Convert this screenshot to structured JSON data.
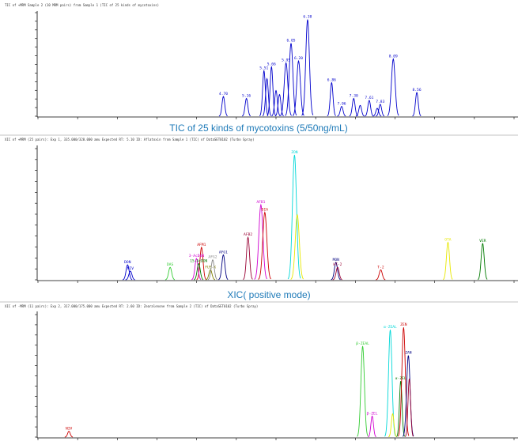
{
  "panel1_header": "TIC of +MRM Sample 2 (10 MRM pairs) from Sample 1 (TIC of 25 kinds of mycotoxins)",
  "panel2_header": "XIC of +MRM (25 pairs): Exp 1, 335.000/320.000 amu Expected RT: 5.10 ID: Aflatoxin from Sample 1 (TIC) of DataSET0102 (Turbo Spray)",
  "panel3_header": "XIC of -MRM (11 pairs): Exp 2, 317.000/175.000 amu Expected RT: 2.60 ID: Zearalenone from Sample 2 (TIC) of DataSET0102 (Turbo Spray)",
  "caption1": "TIC of 25 kinds of mycotoxins (5/50ng/mL)",
  "caption2": "XIC( positive mode)",
  "colors": {
    "blue": "#0000cc",
    "green": "#007a00",
    "magenta": "#d000d0",
    "red": "#cc0000",
    "yellow": "#e8e800",
    "cyan": "#00d8d8",
    "lime": "#33cc33",
    "navy": "#000080",
    "darkred": "#990033",
    "olive": "#808000"
  },
  "chart_data": [
    {
      "type": "line",
      "xlim": [
        1.0,
        10.5
      ],
      "ylim": [
        0,
        1.05
      ],
      "series": [
        {
          "color": "#0000cc",
          "peaks": [
            {
              "rt": 4.7,
              "h": 0.2,
              "label": "4.70"
            },
            {
              "rt": 5.16,
              "h": 0.18,
              "label": "5.16"
            },
            {
              "rt": 5.51,
              "h": 0.46,
              "label": "5.51"
            },
            {
              "rt": 5.57,
              "h": 0.38,
              "label": ""
            },
            {
              "rt": 5.66,
              "h": 0.5,
              "label": "5.66"
            },
            {
              "rt": 5.75,
              "h": 0.26,
              "label": ""
            },
            {
              "rt": 5.82,
              "h": 0.22,
              "label": ""
            },
            {
              "rt": 5.95,
              "h": 0.54,
              "label": "5.95"
            },
            {
              "rt": 6.05,
              "h": 0.74,
              "label": "6.05"
            },
            {
              "rt": 6.2,
              "h": 0.56,
              "label": "6.20"
            },
            {
              "rt": 6.38,
              "h": 0.98,
              "label": "6.38"
            },
            {
              "rt": 6.86,
              "h": 0.34,
              "label": "6.86"
            },
            {
              "rt": 7.06,
              "h": 0.1,
              "label": "7.06"
            },
            {
              "rt": 7.3,
              "h": 0.18,
              "label": "7.30"
            },
            {
              "rt": 7.43,
              "h": 0.11,
              "label": ""
            },
            {
              "rt": 7.61,
              "h": 0.16,
              "label": "7.61"
            },
            {
              "rt": 7.77,
              "h": 0.08,
              "label": ""
            },
            {
              "rt": 7.83,
              "h": 0.12,
              "label": "7.83"
            },
            {
              "rt": 8.09,
              "h": 0.58,
              "label": "8.09"
            },
            {
              "rt": 8.56,
              "h": 0.24,
              "label": "8.56"
            }
          ]
        }
      ]
    },
    {
      "type": "line",
      "xlim": [
        2.5,
        11.0
      ],
      "ylim": [
        0,
        1.05
      ],
      "series": [
        {
          "color": "#0000cc",
          "peaks": [
            {
              "rt": 4.1,
              "h": 0.12,
              "label": "DON"
            },
            {
              "rt": 4.15,
              "h": 0.07,
              "label": "NIV"
            }
          ]
        },
        {
          "color": "#33cc33",
          "peaks": [
            {
              "rt": 4.86,
              "h": 0.1,
              "label": "DAS"
            }
          ]
        },
        {
          "color": "#cc0000",
          "peaks": [
            {
              "rt": 5.42,
              "h": 0.26,
              "label": "AFM1"
            }
          ]
        },
        {
          "color": "#d000d0",
          "peaks": [
            {
              "rt": 5.33,
              "h": 0.17,
              "label": "3-AcDON"
            }
          ]
        },
        {
          "color": "#007a00",
          "peaks": [
            {
              "rt": 5.37,
              "h": 0.13,
              "label": "15-AcDON"
            }
          ]
        },
        {
          "color": "#808000",
          "peaks": [
            {
              "rt": 5.58,
              "h": 0.08,
              "label": "FUS-X"
            }
          ]
        },
        {
          "color": "#888888",
          "peaks": [
            {
              "rt": 5.62,
              "h": 0.16,
              "label": "AFG2"
            }
          ]
        },
        {
          "color": "#000080",
          "peaks": [
            {
              "rt": 5.81,
              "h": 0.2,
              "label": "AFG1"
            }
          ]
        },
        {
          "color": "#990033",
          "peaks": [
            {
              "rt": 6.25,
              "h": 0.34,
              "label": "AFB2"
            }
          ]
        },
        {
          "color": "#d000d0",
          "peaks": [
            {
              "rt": 6.48,
              "h": 0.6,
              "label": "AFB1"
            }
          ]
        },
        {
          "color": "#cc0000",
          "peaks": [
            {
              "rt": 6.55,
              "h": 0.54,
              "label": "DIA"
            }
          ]
        },
        {
          "color": "#00d8d8",
          "peaks": [
            {
              "rt": 7.08,
              "h": 1.0,
              "label": "ZON"
            }
          ]
        },
        {
          "color": "#e8e800",
          "peaks": [
            {
              "rt": 7.13,
              "h": 0.52,
              "label": ""
            }
          ]
        },
        {
          "color": "#000080",
          "peaks": [
            {
              "rt": 7.82,
              "h": 0.14,
              "label": "MON"
            }
          ]
        },
        {
          "color": "#990033",
          "peaks": [
            {
              "rt": 7.85,
              "h": 0.1,
              "label": "HT-2"
            }
          ]
        },
        {
          "color": "#cc0000",
          "peaks": [
            {
              "rt": 8.62,
              "h": 0.08,
              "label": "T-2"
            }
          ]
        },
        {
          "color": "#e8e800",
          "peaks": [
            {
              "rt": 9.82,
              "h": 0.3,
              "label": "OTA"
            }
          ]
        },
        {
          "color": "#007a00",
          "peaks": [
            {
              "rt": 10.44,
              "h": 0.29,
              "label": "VER"
            }
          ]
        }
      ]
    },
    {
      "type": "line",
      "xlim": [
        1.0,
        11.0
      ],
      "ylim": [
        0,
        1.05
      ],
      "series": [
        {
          "color": "#cc0000",
          "peaks": [
            {
              "rt": 1.65,
              "h": 0.05,
              "label": "NIV"
            }
          ]
        },
        {
          "color": "#33cc33",
          "peaks": [
            {
              "rt": 7.82,
              "h": 0.78,
              "label": "β-ZEAL"
            }
          ]
        },
        {
          "color": "#d000d0",
          "peaks": [
            {
              "rt": 8.02,
              "h": 0.18,
              "label": "β-ZEL"
            }
          ]
        },
        {
          "color": "#00d8d8",
          "peaks": [
            {
              "rt": 8.4,
              "h": 0.92,
              "label": "α-ZEAL"
            }
          ]
        },
        {
          "color": "#e8e800",
          "peaks": [
            {
              "rt": 8.45,
              "h": 0.2,
              "label": ""
            }
          ]
        },
        {
          "color": "#007a00",
          "peaks": [
            {
              "rt": 8.62,
              "h": 0.48,
              "label": "α-ZEL"
            }
          ]
        },
        {
          "color": "#cc0000",
          "peaks": [
            {
              "rt": 8.68,
              "h": 0.94,
              "label": "ZEN"
            }
          ]
        },
        {
          "color": "#000080",
          "peaks": [
            {
              "rt": 8.78,
              "h": 0.7,
              "label": "ZAN"
            }
          ]
        },
        {
          "color": "#990033",
          "peaks": [
            {
              "rt": 8.8,
              "h": 0.5,
              "label": ""
            }
          ]
        }
      ]
    }
  ]
}
